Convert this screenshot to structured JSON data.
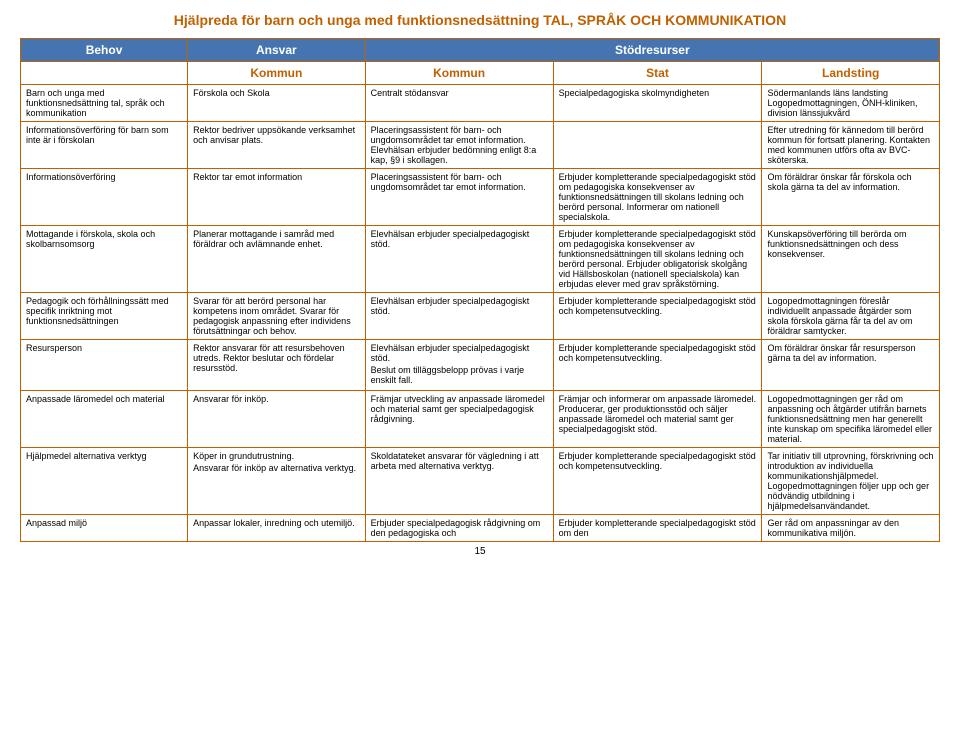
{
  "doc": {
    "title": "Hjälpreda för barn och unga med funktionsnedsättning TAL, SPRÅK OCH KOMMUNIKATION",
    "page_number": "15"
  },
  "header": {
    "h1": "Behov",
    "h2": "Ansvar",
    "h3": "Stödresurser",
    "s1": "Kommun",
    "s2": "Kommun",
    "s3": "Stat",
    "s4": "Landsting"
  },
  "rows": {
    "r0": {
      "c0": "Barn och unga med funktionsnedsättning tal, språk och kommunikation",
      "c1": "Förskola och Skola",
      "c2": "Centralt stödansvar",
      "c3": "Specialpedagogiska skolmyndigheten",
      "c4": "Södermanlands läns landsting Logopedmottagningen, ÖNH-kliniken, division länssjukvård"
    },
    "r1": {
      "c0": "Informationsöverföring för barn som inte är i förskolan",
      "c1": "Rektor bedriver uppsökande verksamhet och anvisar plats.",
      "c2": "Placeringsassistent för barn- och ungdomsområdet tar emot information. Elevhälsan erbjuder bedömning enligt 8:a kap, §9 i skollagen.",
      "c3": "",
      "c4": "Efter utredning för kännedom till berörd kommun för fortsatt planering. Kontakten med kommunen utförs ofta av BVC-sköterska."
    },
    "r2": {
      "c0": "Informationsöverföring",
      "c1": "Rektor tar emot information",
      "c2": "Placeringsassistent för barn- och ungdomsområdet tar emot information.",
      "c3": "Erbjuder kompletterande specialpedagogiskt stöd om pedagogiska konsekvenser av funktionsnedsättningen till skolans ledning och berörd personal. Informerar om nationell specialskola.",
      "c4": "Om föräldrar önskar får förskola och skola gärna ta del av information."
    },
    "r3": {
      "c0": "Mottagande i förskola, skola och skolbarnsomsorg",
      "c1": "Planerar mottagande i samråd med föräldrar och avlämnande enhet.",
      "c2": "Elevhälsan erbjuder specialpedagogiskt stöd.",
      "c3": "Erbjuder kompletterande specialpedagogiskt stöd om pedagogiska konsekvenser av funktionsnedsättningen till skolans ledning och berörd personal. Erbjuder obligatorisk skolgång vid Hällsboskolan (nationell specialskola) kan erbjudas elever med grav språkstörning.",
      "c4": "Kunskapsöverföring till berörda om funktionsnedsättningen och dess konsekvenser."
    },
    "r4": {
      "c0": "Pedagogik och förhållningssätt med specifik inriktning mot funktionsnedsättningen",
      "c1": "Svarar för att berörd personal har kompetens inom området. Svarar för pedagogisk anpassning efter individens förutsättningar och behov.",
      "c2": "Elevhälsan erbjuder specialpedagogiskt stöd.",
      "c3": "Erbjuder kompletterande specialpedagogiskt stöd och kompetensutveckling.",
      "c4": "Logopedmottagningen föreslår individuellt anpassade åtgärder som skola förskola gärna får ta del av om föräldrar samtycker."
    },
    "r5": {
      "c0": "Resursperson",
      "c1": "Rektor ansvarar för att resursbehoven utreds. Rektor beslutar och fördelar resursstöd.",
      "c2a": "Elevhälsan erbjuder specialpedagogiskt stöd.",
      "c2b": "Beslut om tilläggsbelopp prövas i varje enskilt fall.",
      "c3": "Erbjuder kompletterande specialpedagogiskt stöd och kompetensutveckling.",
      "c4": "Om föräldrar önskar får resursperson gärna ta del av information."
    },
    "r6": {
      "c0": "Anpassade läromedel och material",
      "c1": "Ansvarar för inköp.",
      "c2": "Främjar utveckling av anpassade läromedel och material samt ger specialpedagogisk rådgivning.",
      "c3": "Främjar och informerar om anpassade läromedel. Producerar, ger produktionsstöd och säljer anpassade läromedel och material samt ger specialpedagogiskt stöd.",
      "c4": "Logopedmottagningen ger råd om anpassning och åtgärder utifrån barnets funktionsnedsättning men har generellt inte kunskap om specifika läromedel eller material."
    },
    "r7": {
      "c0": "Hjälpmedel alternativa verktyg",
      "c1a": "Köper in grundutrustning.",
      "c1b": "Ansvarar för inköp av alternativa verktyg.",
      "c2": "Skoldatateket ansvarar för vägledning i att arbeta med alternativa verktyg.",
      "c3": "Erbjuder kompletterande specialpedagogiskt stöd och kompetensutveckling.",
      "c4": "Tar initiativ till utprovning, förskrivning och introduktion av individuella kommunikationshjälpmedel. Logopedmottagningen följer upp och ger nödvändig utbildning i hjälpmedelsanvändandet."
    },
    "r8": {
      "c0": "Anpassad miljö",
      "c1": "Anpassar lokaler, inredning och utemiljö.",
      "c2": "Erbjuder specialpedagogisk rådgivning om den pedagogiska och",
      "c3": "Erbjuder kompletterande specialpedagogiskt stöd om den",
      "c4": "Ger råd om anpassningar av den kommunikativa miljön."
    }
  }
}
